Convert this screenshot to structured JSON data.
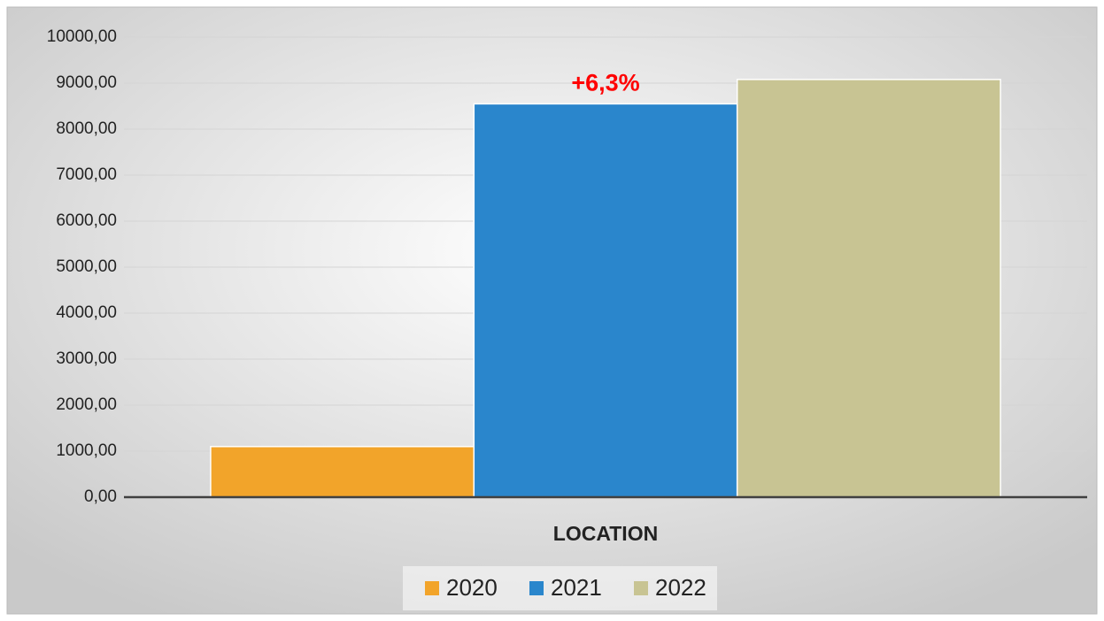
{
  "chart_data": {
    "type": "bar",
    "categories": [
      "LOCATION"
    ],
    "series": [
      {
        "name": "2020",
        "color": "#f2a42a",
        "values": [
          1100
        ]
      },
      {
        "name": "2021",
        "color": "#2a86cc",
        "values": [
          8550
        ]
      },
      {
        "name": "2022",
        "color": "#c8c493",
        "values": [
          9080
        ]
      }
    ],
    "annotation": "+6,3%",
    "annotation_color": "#ff0000",
    "ylim": [
      0,
      10000
    ],
    "yticks": [
      {
        "value": 0,
        "label": "0,00"
      },
      {
        "value": 1000,
        "label": "1000,00"
      },
      {
        "value": 2000,
        "label": "2000,00"
      },
      {
        "value": 3000,
        "label": "3000,00"
      },
      {
        "value": 4000,
        "label": "4000,00"
      },
      {
        "value": 5000,
        "label": "5000,00"
      },
      {
        "value": 6000,
        "label": "6000,00"
      },
      {
        "value": 7000,
        "label": "7000,00"
      },
      {
        "value": 8000,
        "label": "8000,00"
      },
      {
        "value": 9000,
        "label": "9000,00"
      },
      {
        "value": 10000,
        "label": "10000,00"
      }
    ],
    "grid": true,
    "legend": "bottom"
  }
}
